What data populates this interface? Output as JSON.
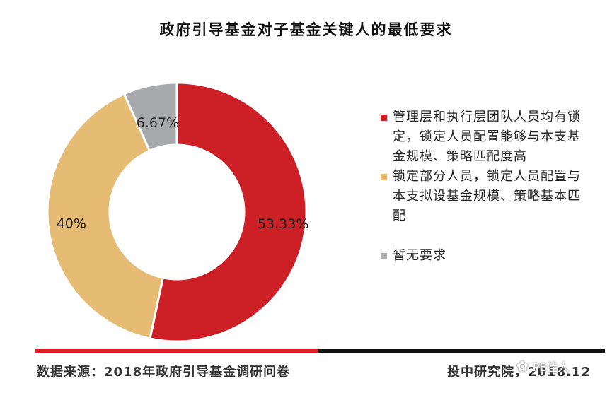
{
  "chart_data": {
    "type": "pie",
    "title": "政府引导基金对子基金关键人的最低要求",
    "slices": [
      {
        "label": "管理层和执行层团队人员均有锁定，锁定人员配置能够与本支基金规模、策略匹配度高",
        "value": 53.33,
        "value_label": "53.33%",
        "color": "#cc1f26"
      },
      {
        "label": "锁定部分人员，锁定人员配置与本支拟设基金规模、策略基本匹配",
        "value": 40,
        "value_label": "40%",
        "color": "#e6bb73"
      },
      {
        "label": "暂无要求",
        "value": 6.67,
        "value_label": "6.67%",
        "color": "#a7a9ac"
      }
    ],
    "donut": true,
    "legend_position": "right"
  },
  "footer": {
    "source": "数据来源：2018年政府引导基金调研问卷",
    "publisher": "投中研究院，2018.12",
    "watermark": "PE佳人",
    "line_colors": [
      "#e31c23",
      "#111111"
    ]
  }
}
